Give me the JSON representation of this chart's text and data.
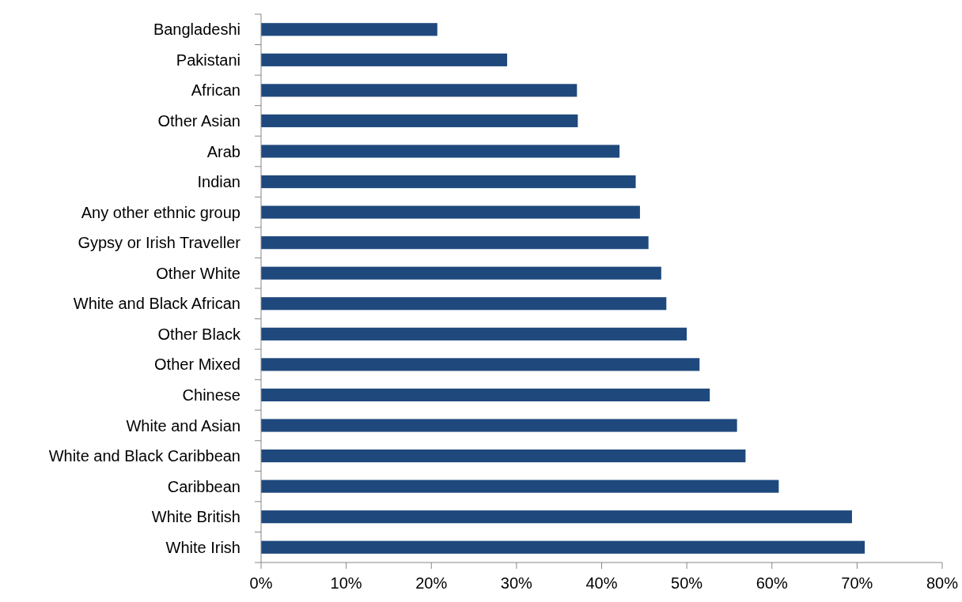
{
  "chart_data": {
    "type": "bar",
    "orientation": "horizontal",
    "categories": [
      "Bangladeshi",
      "Pakistani",
      "African",
      "Other Asian",
      "Arab",
      "Indian",
      "Any other ethnic group",
      "Gypsy or Irish Traveller",
      "Other White",
      "White and Black African",
      "Other Black",
      "Other Mixed",
      "Chinese",
      "White and Asian",
      "White and Black Caribbean",
      "Caribbean",
      "White British",
      "White Irish"
    ],
    "values": [
      20.7,
      28.9,
      37.1,
      37.2,
      42.1,
      44.0,
      44.5,
      45.5,
      47.0,
      47.6,
      50.0,
      51.5,
      52.7,
      55.9,
      56.9,
      60.8,
      69.4,
      70.9
    ],
    "color": "#1f497d",
    "xlim": [
      0,
      80
    ],
    "xticks": [
      {
        "value": 0,
        "label": "0%"
      },
      {
        "value": 10,
        "label": "10%"
      },
      {
        "value": 20,
        "label": "20%"
      },
      {
        "value": 30,
        "label": "30%"
      },
      {
        "value": 40,
        "label": "40%"
      },
      {
        "value": 50,
        "label": "50%"
      },
      {
        "value": 60,
        "label": "60%"
      },
      {
        "value": 70,
        "label": "70%"
      },
      {
        "value": 80,
        "label": "80%"
      }
    ],
    "tick_labels": true
  }
}
